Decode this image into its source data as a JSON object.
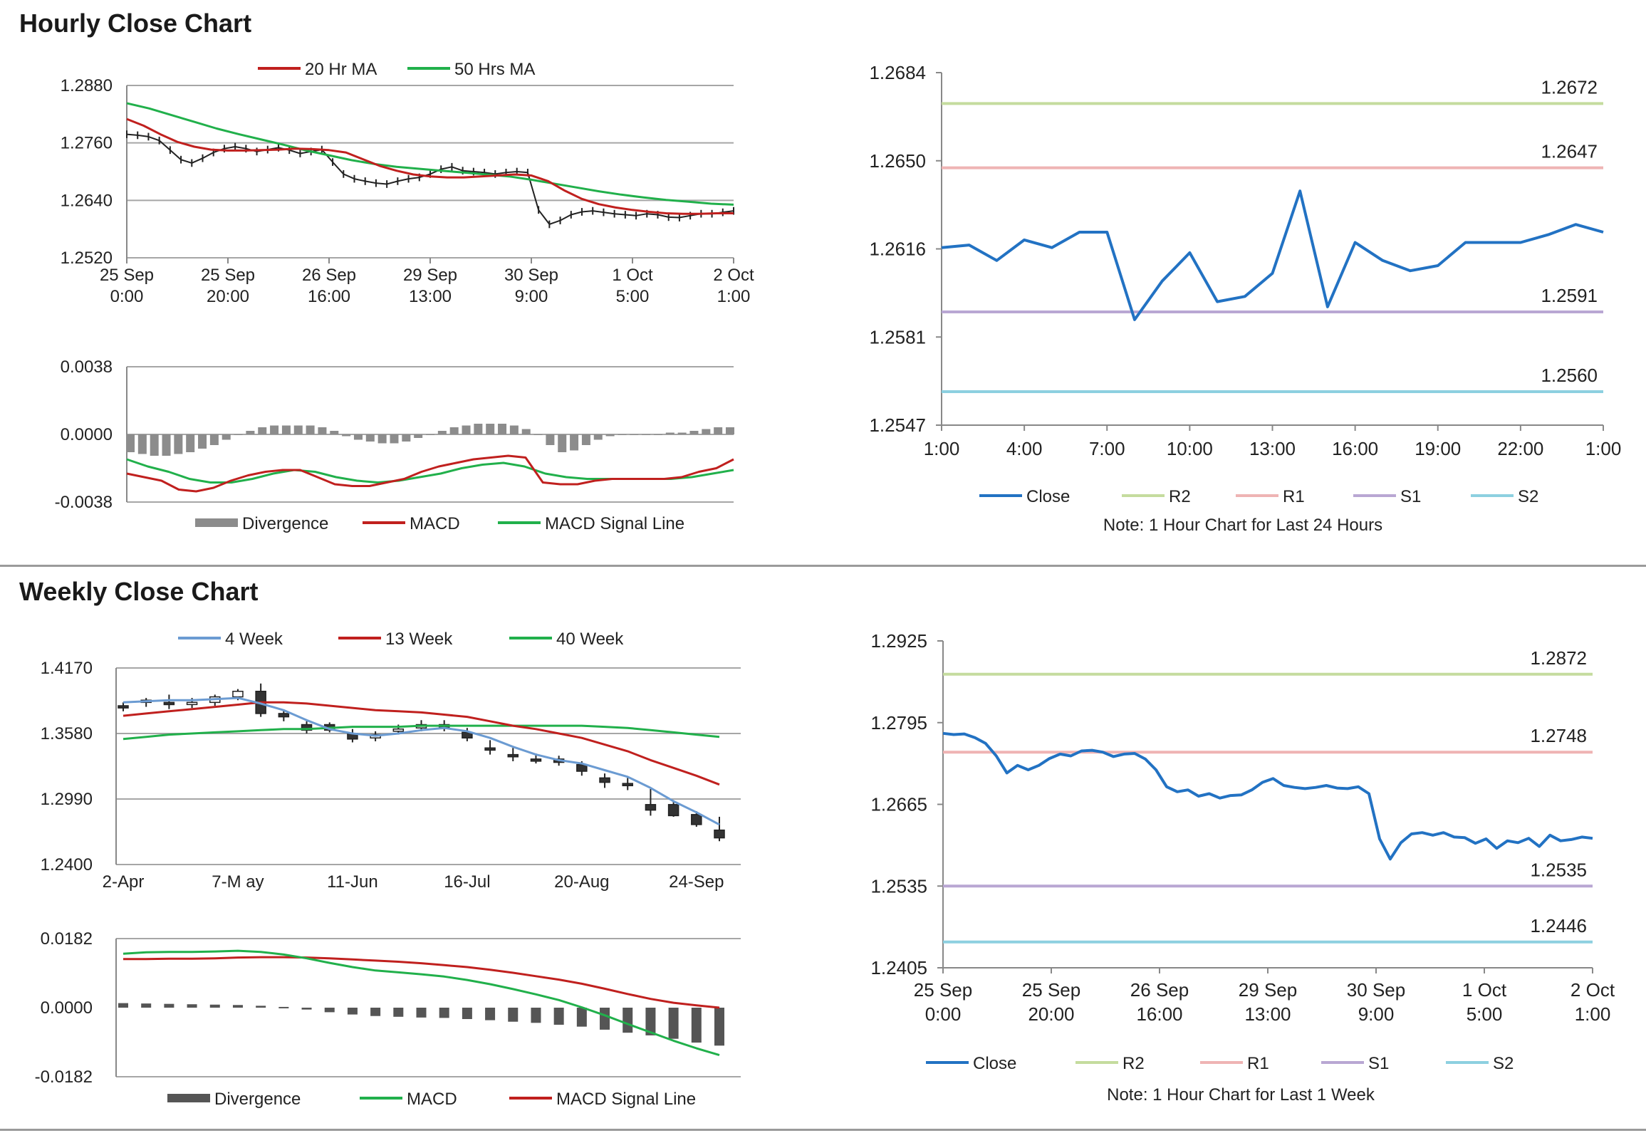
{
  "hourly_title": "Hourly Close Chart",
  "weekly_title": "Weekly Close Chart",
  "chart_data": [
    {
      "id": "hourly-ma",
      "type": "line",
      "ylim": [
        1.252,
        1.288
      ],
      "yticks": [
        "1.2880",
        "1.2760",
        "1.2640",
        "1.2520"
      ],
      "xticks": [
        [
          "25 Sep",
          "0:00"
        ],
        [
          "25 Sep",
          "20:00"
        ],
        [
          "26 Sep",
          "16:00"
        ],
        [
          "29 Sep",
          "13:00"
        ],
        [
          "30 Sep",
          "9:00"
        ],
        [
          "1 Oct",
          "5:00"
        ],
        [
          "2 Oct",
          "1:00"
        ]
      ],
      "legend": [
        {
          "name": "20 Hr MA",
          "color": "#c0201e"
        },
        {
          "name": "50 Hrs MA",
          "color": "#21b04b"
        }
      ],
      "price": [
        1.2778,
        1.2776,
        1.2773,
        1.2765,
        1.2745,
        1.2725,
        1.2718,
        1.2728,
        1.274,
        1.2748,
        1.2752,
        1.2748,
        1.2742,
        1.2746,
        1.275,
        1.2745,
        1.2738,
        1.2742,
        1.2746,
        1.272,
        1.2695,
        1.2685,
        1.268,
        1.2676,
        1.2674,
        1.268,
        1.2685,
        1.2688,
        1.2695,
        1.2705,
        1.271,
        1.2702,
        1.27,
        1.2698,
        1.2695,
        1.2698,
        1.27,
        1.2698,
        1.262,
        1.259,
        1.2598,
        1.261,
        1.2616,
        1.2618,
        1.2615,
        1.2612,
        1.261,
        1.2608,
        1.2612,
        1.261,
        1.2605,
        1.2604,
        1.2608,
        1.2612,
        1.2612,
        1.2615,
        1.2618
      ],
      "ma20": [
        1.281,
        1.2796,
        1.2778,
        1.2762,
        1.2752,
        1.2746,
        1.2744,
        1.2744,
        1.2745,
        1.2746,
        1.2748,
        1.2747,
        1.2745,
        1.274,
        1.2726,
        1.2712,
        1.2702,
        1.2694,
        1.269,
        1.2688,
        1.2688,
        1.269,
        1.2692,
        1.2694,
        1.2692,
        1.268,
        1.266,
        1.2643,
        1.2632,
        1.2625,
        1.262,
        1.2616,
        1.2613,
        1.2612,
        1.2612,
        1.2613,
        1.2613
      ],
      "ma50": [
        1.2843,
        1.2832,
        1.2818,
        1.2804,
        1.279,
        1.2778,
        1.2767,
        1.2756,
        1.2744,
        1.2734,
        1.2724,
        1.2716,
        1.271,
        1.2706,
        1.2702,
        1.2698,
        1.2694,
        1.269,
        1.2683,
        1.2675,
        1.2667,
        1.2659,
        1.2652,
        1.2646,
        1.2641,
        1.2637,
        1.2633,
        1.2631
      ],
      "macd_panel": {
        "ylim": [
          -0.0038,
          0.0038
        ],
        "yticks": [
          "0.0038",
          "0.0000",
          "-0.0038"
        ],
        "legend": [
          {
            "name": "Divergence",
            "color": "#8c8c8c"
          },
          {
            "name": "MACD",
            "color": "#c0201e"
          },
          {
            "name": "MACD Signal Line",
            "color": "#21b04b"
          }
        ],
        "divergence": [
          -0.001,
          -0.0011,
          -0.0012,
          -0.0012,
          -0.0011,
          -0.001,
          -0.0008,
          -0.0006,
          -0.0003,
          0.0,
          0.0002,
          0.0004,
          0.0005,
          0.0005,
          0.0005,
          0.0005,
          0.0004,
          0.0002,
          -0.0001,
          -0.0003,
          -0.0004,
          -0.0005,
          -0.0005,
          -0.0004,
          -0.0002,
          0.0,
          0.0002,
          0.0004,
          0.0005,
          0.0006,
          0.0006,
          0.0006,
          0.0005,
          0.0003,
          0.0,
          -0.0006,
          -0.001,
          -0.0009,
          -0.0006,
          -0.0003,
          -0.0001,
          0.0,
          0.0,
          0.0,
          0.0,
          0.0001,
          0.0001,
          0.0002,
          0.0003,
          0.0004,
          0.0004
        ],
        "macd": [
          -0.0022,
          -0.0024,
          -0.0026,
          -0.0031,
          -0.0032,
          -0.003,
          -0.0026,
          -0.0023,
          -0.0021,
          -0.002,
          -0.002,
          -0.0024,
          -0.0028,
          -0.0029,
          -0.0029,
          -0.0027,
          -0.0025,
          -0.0021,
          -0.0018,
          -0.0016,
          -0.0014,
          -0.0013,
          -0.0012,
          -0.0013,
          -0.0027,
          -0.0028,
          -0.0028,
          -0.0026,
          -0.0025,
          -0.0025,
          -0.0025,
          -0.0025,
          -0.0024,
          -0.0021,
          -0.0019,
          -0.0014
        ],
        "signal": [
          -0.0014,
          -0.0018,
          -0.0021,
          -0.0025,
          -0.0027,
          -0.0027,
          -0.0025,
          -0.0022,
          -0.002,
          -0.0021,
          -0.0024,
          -0.0026,
          -0.0027,
          -0.0026,
          -0.0024,
          -0.0022,
          -0.0019,
          -0.0017,
          -0.0016,
          -0.0018,
          -0.0022,
          -0.0024,
          -0.0025,
          -0.0025,
          -0.0025,
          -0.0025,
          -0.0025,
          -0.0024,
          -0.0022,
          -0.002
        ]
      }
    },
    {
      "id": "hourly-24h",
      "type": "line",
      "ylim": [
        1.2547,
        1.2684
      ],
      "yticks": [
        "1.2684",
        "1.2650",
        "1.2616",
        "1.2581",
        "1.2547"
      ],
      "xticks": [
        "1:00",
        "4:00",
        "7:00",
        "10:00",
        "13:00",
        "16:00",
        "19:00",
        "22:00",
        "1:00"
      ],
      "close": [
        1.2616,
        1.2617,
        1.2611,
        1.2619,
        1.2616,
        1.2622,
        1.2622,
        1.2588,
        1.2603,
        1.2614,
        1.2595,
        1.2597,
        1.2606,
        1.2638,
        1.2593,
        1.2618,
        1.2611,
        1.2607,
        1.2609,
        1.2618,
        1.2618,
        1.2618,
        1.2621,
        1.2625,
        1.2622
      ],
      "levels": [
        {
          "name": "R2",
          "value": 1.2672,
          "label": "1.2672",
          "color": "#c5dc9e"
        },
        {
          "name": "R1",
          "value": 1.2647,
          "label": "1.2647",
          "color": "#efb4b4"
        },
        {
          "name": "S1",
          "value": 1.2591,
          "label": "1.2591",
          "color": "#b9a7d3"
        },
        {
          "name": "S2",
          "value": 1.256,
          "label": "1.2560",
          "color": "#8dd0e0"
        }
      ],
      "legend": [
        {
          "name": "Close",
          "color": "#2272c3"
        },
        {
          "name": "R2",
          "color": "#c5dc9e"
        },
        {
          "name": "R1",
          "color": "#efb4b4"
        },
        {
          "name": "S1",
          "color": "#b9a7d3"
        },
        {
          "name": "S2",
          "color": "#8dd0e0"
        }
      ],
      "note": "Note: 1 Hour Chart for Last 24 Hours"
    },
    {
      "id": "weekly-ma",
      "type": "line",
      "ylim": [
        1.24,
        1.417
      ],
      "yticks": [
        "1.4170",
        "1.3580",
        "1.2990",
        "1.2400"
      ],
      "xticks": [
        "2-Apr",
        "7-M ay",
        "11-Jun",
        "16-Jul",
        "20-Aug",
        "24-Sep"
      ],
      "legend": [
        {
          "name": "4 Week",
          "color": "#6b9bd2"
        },
        {
          "name": "13 Week",
          "color": "#c0201e"
        },
        {
          "name": "40 Week",
          "color": "#21b04b"
        }
      ],
      "candles": [
        [
          1.383,
          1.381,
          1.386,
          1.378
        ],
        [
          1.386,
          1.388,
          1.39,
          1.382
        ],
        [
          1.386,
          1.384,
          1.393,
          1.38
        ],
        [
          1.385,
          1.386,
          1.39,
          1.381
        ],
        [
          1.386,
          1.391,
          1.393,
          1.383
        ],
        [
          1.391,
          1.396,
          1.398,
          1.388
        ],
        [
          1.396,
          1.376,
          1.403,
          1.373
        ],
        [
          1.376,
          1.373,
          1.379,
          1.369
        ],
        [
          1.366,
          1.361,
          1.369,
          1.358
        ],
        [
          1.366,
          1.361,
          1.368,
          1.359
        ],
        [
          1.358,
          1.353,
          1.362,
          1.35
        ],
        [
          1.354,
          1.357,
          1.36,
          1.351
        ],
        [
          1.36,
          1.362,
          1.366,
          1.357
        ],
        [
          1.363,
          1.366,
          1.37,
          1.36
        ],
        [
          1.366,
          1.363,
          1.37,
          1.36
        ],
        [
          1.359,
          1.354,
          1.363,
          1.351
        ],
        [
          1.345,
          1.343,
          1.352,
          1.339
        ],
        [
          1.339,
          1.337,
          1.345,
          1.333
        ],
        [
          1.335,
          1.334,
          1.34,
          1.331
        ],
        [
          1.335,
          1.332,
          1.338,
          1.329
        ],
        [
          1.33,
          1.324,
          1.333,
          1.32
        ],
        [
          1.318,
          1.314,
          1.322,
          1.309
        ],
        [
          1.313,
          1.311,
          1.318,
          1.307
        ],
        [
          1.294,
          1.289,
          1.308,
          1.284
        ],
        [
          1.294,
          1.284,
          1.297,
          1.283
        ],
        [
          1.285,
          1.276,
          1.288,
          1.274
        ],
        [
          1.271,
          1.264,
          1.283,
          1.261
        ]
      ],
      "wk4": [
        1.386,
        1.387,
        1.388,
        1.388,
        1.389,
        1.39,
        1.385,
        1.379,
        1.37,
        1.362,
        1.358,
        1.356,
        1.358,
        1.361,
        1.363,
        1.36,
        1.354,
        1.346,
        1.339,
        1.334,
        1.331,
        1.325,
        1.319,
        1.309,
        1.297,
        1.287,
        1.276
      ],
      "wk13": [
        1.374,
        1.376,
        1.378,
        1.38,
        1.382,
        1.384,
        1.386,
        1.386,
        1.385,
        1.383,
        1.381,
        1.379,
        1.378,
        1.377,
        1.375,
        1.373,
        1.369,
        1.365,
        1.362,
        1.358,
        1.354,
        1.348,
        1.342,
        1.334,
        1.327,
        1.32,
        1.312
      ],
      "wk40": [
        1.353,
        1.355,
        1.357,
        1.358,
        1.359,
        1.36,
        1.361,
        1.362,
        1.362,
        1.363,
        1.364,
        1.364,
        1.364,
        1.365,
        1.365,
        1.365,
        1.365,
        1.365,
        1.365,
        1.365,
        1.365,
        1.364,
        1.363,
        1.361,
        1.359,
        1.357,
        1.355
      ],
      "macd_panel": {
        "ylim": [
          -0.0182,
          0.0182
        ],
        "yticks": [
          "0.0182",
          "0.0000",
          "-0.0182"
        ],
        "legend": [
          {
            "name": "Divergence",
            "color": "#555555"
          },
          {
            "name": "MACD",
            "color": "#21b04b"
          },
          {
            "name": "MACD Signal Line",
            "color": "#c0201e"
          }
        ],
        "divergence": [
          0.0012,
          0.0011,
          0.001,
          0.0009,
          0.0008,
          0.0007,
          0.0005,
          0.0002,
          -0.0005,
          -0.0012,
          -0.0018,
          -0.0022,
          -0.0024,
          -0.0026,
          -0.0027,
          -0.003,
          -0.0033,
          -0.0037,
          -0.004,
          -0.0045,
          -0.005,
          -0.0058,
          -0.0066,
          -0.0073,
          -0.0082,
          -0.0092,
          -0.01
        ],
        "macd": [
          0.0142,
          0.0146,
          0.0147,
          0.0147,
          0.0148,
          0.015,
          0.0147,
          0.014,
          0.013,
          0.0118,
          0.0107,
          0.0098,
          0.0093,
          0.0088,
          0.0082,
          0.0073,
          0.0062,
          0.0049,
          0.0035,
          0.002,
          0.0001,
          -0.002,
          -0.0043,
          -0.0065,
          -0.0087,
          -0.0107,
          -0.0125
        ],
        "signal": [
          0.0128,
          0.0128,
          0.0129,
          0.0129,
          0.013,
          0.0132,
          0.0133,
          0.0133,
          0.0132,
          0.013,
          0.0127,
          0.0124,
          0.0121,
          0.0117,
          0.0112,
          0.0107,
          0.01,
          0.0092,
          0.0083,
          0.0074,
          0.0063,
          0.005,
          0.0036,
          0.0023,
          0.0013,
          0.0006,
          0.0
        ]
      }
    },
    {
      "id": "weekly-1w",
      "type": "line",
      "ylim": [
        1.2405,
        1.2925
      ],
      "yticks": [
        "1.2925",
        "1.2795",
        "1.2665",
        "1.2535",
        "1.2405"
      ],
      "xticks": [
        [
          "25 Sep",
          "0:00"
        ],
        [
          "25 Sep",
          "20:00"
        ],
        [
          "26 Sep",
          "16:00"
        ],
        [
          "29 Sep",
          "13:00"
        ],
        [
          "30 Sep",
          "9:00"
        ],
        [
          "1 Oct",
          "5:00"
        ],
        [
          "2 Oct",
          "1:00"
        ]
      ],
      "close": [
        1.2778,
        1.2776,
        1.2777,
        1.2771,
        1.2762,
        1.2742,
        1.2715,
        1.2727,
        1.272,
        1.2727,
        1.2738,
        1.2745,
        1.2742,
        1.275,
        1.2751,
        1.2748,
        1.2741,
        1.2745,
        1.2746,
        1.2737,
        1.272,
        1.2693,
        1.2685,
        1.2688,
        1.2678,
        1.2682,
        1.2675,
        1.2679,
        1.268,
        1.2688,
        1.27,
        1.2706,
        1.2695,
        1.2692,
        1.269,
        1.2692,
        1.2695,
        1.2691,
        1.269,
        1.2693,
        1.2682,
        1.261,
        1.2578,
        1.2604,
        1.2618,
        1.262,
        1.2616,
        1.262,
        1.2613,
        1.2612,
        1.2603,
        1.261,
        1.2595,
        1.2607,
        1.2604,
        1.2611,
        1.2598,
        1.2616,
        1.2607,
        1.2609,
        1.2613,
        1.2611
      ],
      "levels": [
        {
          "name": "R2",
          "value": 1.2872,
          "label": "1.2872",
          "color": "#c5dc9e"
        },
        {
          "name": "R1",
          "value": 1.2748,
          "label": "1.2748",
          "color": "#efb4b4"
        },
        {
          "name": "S1",
          "value": 1.2535,
          "label": "1.2535",
          "color": "#b9a7d3"
        },
        {
          "name": "S2",
          "value": 1.2446,
          "label": "1.2446",
          "color": "#8dd0e0"
        }
      ],
      "legend": [
        {
          "name": "Close",
          "color": "#2272c3"
        },
        {
          "name": "R2",
          "color": "#c5dc9e"
        },
        {
          "name": "R1",
          "color": "#efb4b4"
        },
        {
          "name": "S1",
          "color": "#b9a7d3"
        },
        {
          "name": "S2",
          "color": "#8dd0e0"
        }
      ],
      "note": "Note: 1 Hour Chart for Last 1 Week"
    }
  ]
}
